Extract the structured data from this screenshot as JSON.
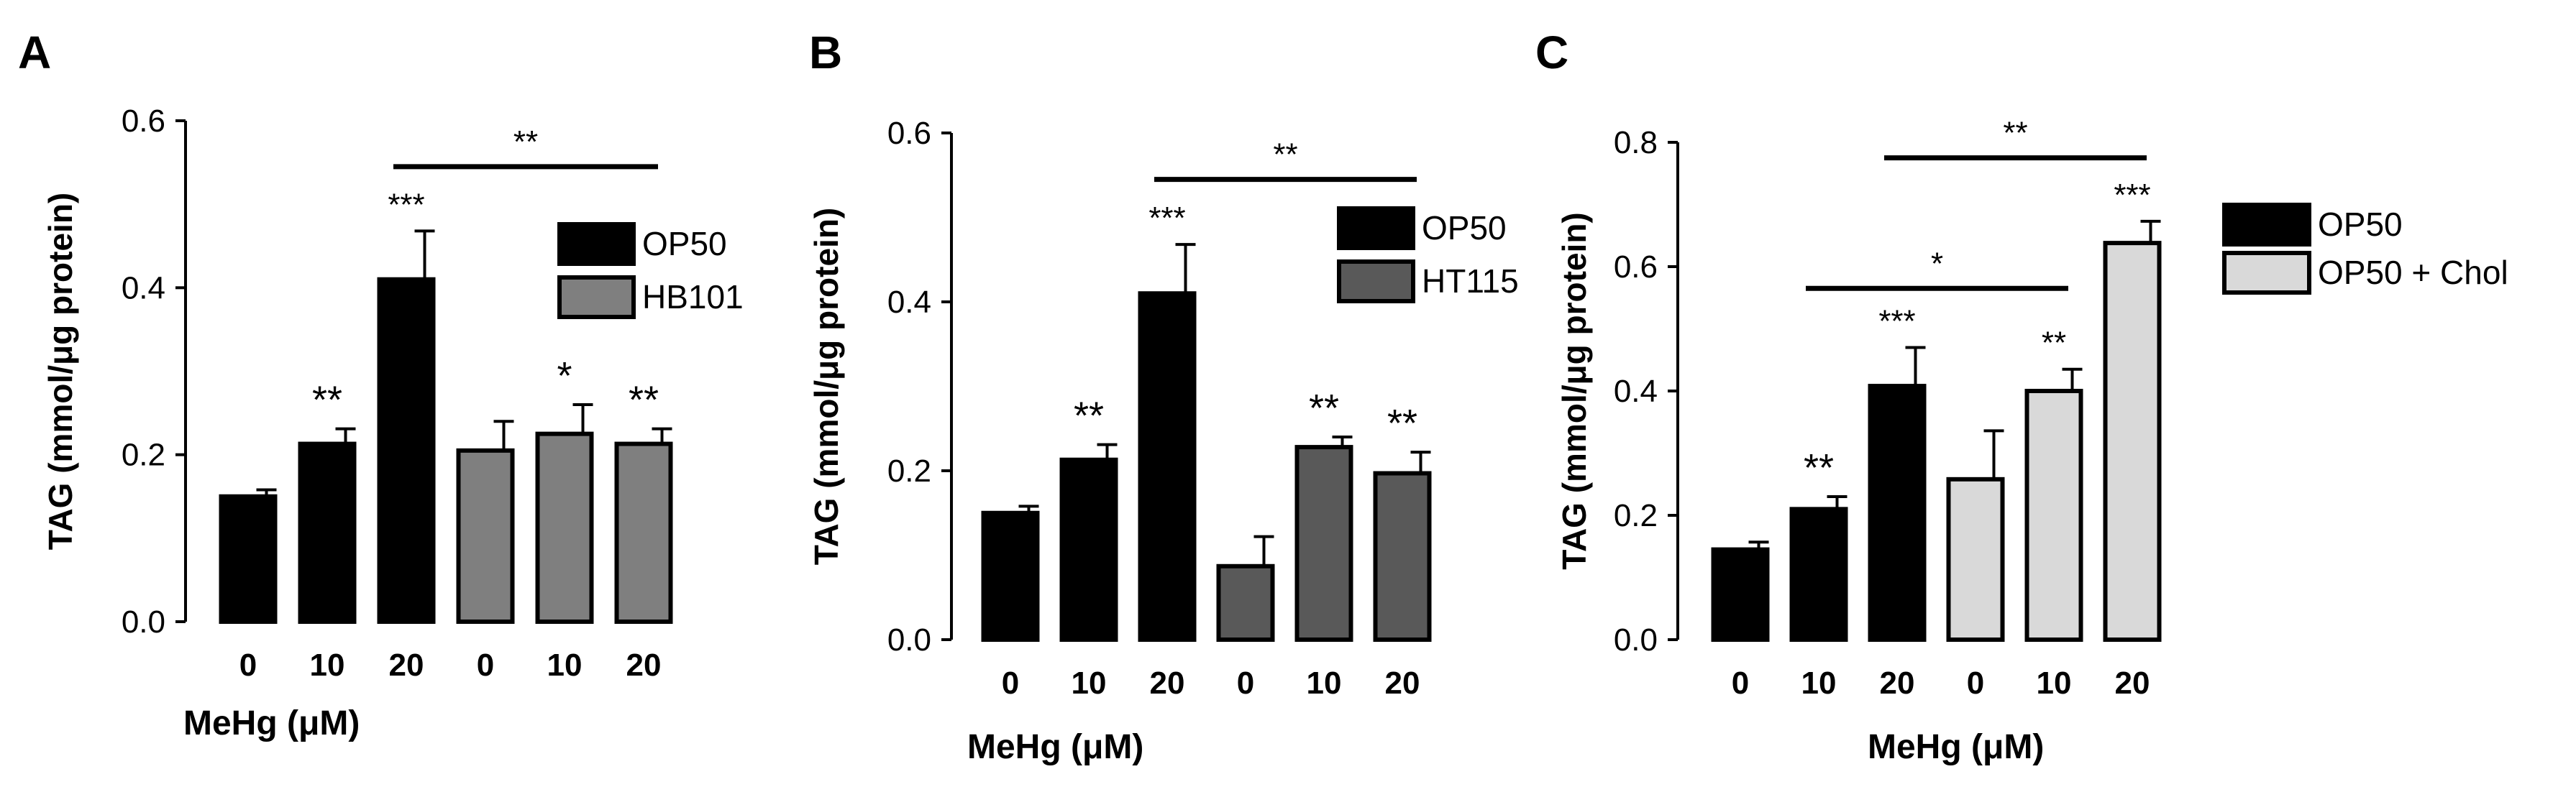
{
  "colors": {
    "black": "#000000",
    "grey_a": "#7f7f7f",
    "grey_b": "#595959",
    "light_c": "#d9d9d9",
    "axis": "#000000"
  },
  "chart_data": [
    {
      "type": "bar",
      "panel": "A",
      "ylabel": "TAG (mmol/μg protein)",
      "xlabel": "MeHg (μM)",
      "ylim": [
        0,
        0.6
      ],
      "yticks": [
        "0.0",
        "0.2",
        "0.4",
        "0.6"
      ],
      "categories": [
        "0",
        "10",
        "20",
        "0",
        "10",
        "20"
      ],
      "values": [
        0.15,
        0.213,
        0.41,
        0.205,
        0.225,
        0.213
      ],
      "errors": [
        0.008,
        0.018,
        0.058,
        0.035,
        0.035,
        0.018
      ],
      "fills": [
        "black",
        "black",
        "black",
        "grey_a",
        "grey_a",
        "grey_a"
      ],
      "series": [
        {
          "name": "OP50",
          "fill": "black"
        },
        {
          "name": "HB101",
          "fill": "grey_a"
        }
      ],
      "bar_sig": [
        "",
        "**",
        "***",
        "",
        "*",
        "**"
      ],
      "brackets": [
        {
          "from": 2,
          "to": 5,
          "label": "**",
          "y": 0.545
        }
      ]
    },
    {
      "type": "bar",
      "panel": "B",
      "ylabel": "TAG (mmol/μg protein)",
      "xlabel": "MeHg (μM)",
      "ylim": [
        0,
        0.6
      ],
      "yticks": [
        "0.0",
        "0.2",
        "0.4",
        "0.6"
      ],
      "categories": [
        "0",
        "10",
        "20",
        "0",
        "10",
        "20"
      ],
      "values": [
        0.15,
        0.213,
        0.41,
        0.087,
        0.228,
        0.197
      ],
      "errors": [
        0.008,
        0.018,
        0.058,
        0.035,
        0.012,
        0.025
      ],
      "fills": [
        "black",
        "black",
        "black",
        "grey_b",
        "grey_b",
        "grey_b"
      ],
      "series": [
        {
          "name": "OP50",
          "fill": "black"
        },
        {
          "name": "HT115",
          "fill": "grey_b"
        }
      ],
      "bar_sig": [
        "",
        "**",
        "***",
        "",
        "**",
        "**"
      ],
      "brackets": [
        {
          "from": 2,
          "to": 5,
          "label": "**",
          "y": 0.545
        }
      ]
    },
    {
      "type": "bar",
      "panel": "C",
      "ylabel": "TAG (mmol/μg protein)",
      "xlabel": "MeHg (μM)",
      "ylim": [
        0,
        0.8
      ],
      "yticks": [
        "0.0",
        "0.2",
        "0.4",
        "0.6",
        "0.8"
      ],
      "categories": [
        "0",
        "10",
        "20",
        "0",
        "10",
        "20"
      ],
      "values": [
        0.145,
        0.21,
        0.408,
        0.258,
        0.4,
        0.638
      ],
      "errors": [
        0.012,
        0.02,
        0.062,
        0.078,
        0.035,
        0.035
      ],
      "fills": [
        "black",
        "black",
        "black",
        "light_c",
        "light_c",
        "light_c"
      ],
      "series": [
        {
          "name": "OP50",
          "fill": "black"
        },
        {
          "name": "OP50 + Chol",
          "fill": "light_c"
        }
      ],
      "bar_sig": [
        "",
        "**",
        "***",
        "",
        "**",
        "***"
      ],
      "brackets": [
        {
          "from": 2,
          "to": 5,
          "label": "**",
          "y": 0.775
        },
        {
          "from": 1,
          "to": 4,
          "label": "*",
          "y": 0.565
        }
      ]
    }
  ]
}
